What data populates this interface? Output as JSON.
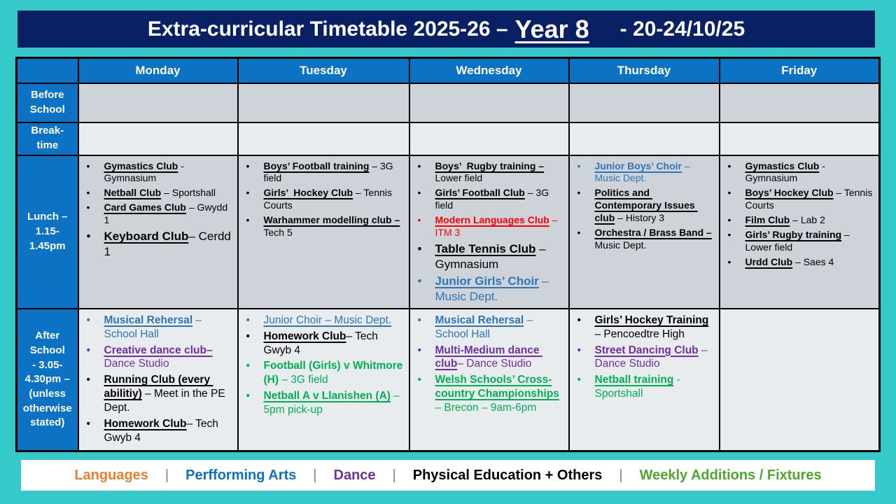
{
  "title": {
    "prefix": "Extra-curricular Timetable 2025-26 –",
    "year": "Year 8",
    "suffix": "- 20-24/10/25"
  },
  "colors": {
    "teal": "#35c9c9",
    "navy": "#0a2064",
    "header_blue": "#0b72c4",
    "row_gray": "#ced3da",
    "row_light": "#e9ecef",
    "sep_gray": "#7f7f7f",
    "text_black": "#000000",
    "text_blue": "#2e75b6",
    "text_purple": "#7030a0",
    "text_green": "#00b050",
    "text_red": "#ff0000",
    "legend_orange": "#ed7d31",
    "legend_green": "#4ea72e"
  },
  "table": {
    "days": [
      "Monday",
      "Tuesday",
      "Wednesday",
      "Thursday",
      "Friday"
    ],
    "rows": [
      {
        "id": "before",
        "label": "Before\nSchool",
        "cells": [
          [],
          [],
          [],
          [],
          []
        ]
      },
      {
        "id": "break",
        "label": "Break-\ntime",
        "cells": [
          [],
          [],
          [],
          [],
          []
        ]
      },
      {
        "id": "lunch",
        "label": "Lunch –\n1.15-\n1.45pm",
        "cells": [
          [
            {
              "head": "Gymastics Club",
              "tail": " - Gymnasium",
              "color": "#000000"
            },
            {
              "head": "Netball Club",
              "tail": " – Sportshall",
              "color": "#000000"
            },
            {
              "head": "Card Games Club",
              "tail": " – Gwydd 1",
              "color": "#000000"
            },
            {
              "head": "Keyboard Club",
              "tail": "– Cerdd 1",
              "color": "#000000",
              "big": true
            }
          ],
          [
            {
              "head": "Boys’ Football training",
              "tail": " – 3G field",
              "color": "#000000"
            },
            {
              "head": "Girls’  Hockey Club",
              "tail": " – Tennis Courts",
              "color": "#000000"
            },
            {
              "head": "Warhammer modelling club –",
              "tail": " Tech 5",
              "color": "#000000"
            }
          ],
          [
            {
              "head": "Boys’  Rugby training –",
              "tail": " Lower field",
              "color": "#000000"
            },
            {
              "head": "Girls’ Football Club",
              "tail": " – 3G field",
              "color": "#000000"
            },
            {
              "head": "Modern Languages Club",
              "tail": " – ITM 3",
              "color": "#ff0000"
            },
            {
              "head": "Table Tennis Club",
              "tail": " – Gymnasium",
              "color": "#000000",
              "big": true
            },
            {
              "head": "Junior Girls’ Choir",
              "tail": " – Music Dept.",
              "color": "#2e75b6",
              "big": true
            }
          ],
          [
            {
              "head": "Junior Boys’ Choir",
              "tail": " – Music Dept.",
              "color": "#2e75b6"
            },
            {
              "head": "Politics and Contemporary Issues club",
              "tail": " – History 3",
              "color": "#000000"
            },
            {
              "head": "Orchestra / Brass Band –",
              "tail": " Music Dept.",
              "color": "#000000"
            }
          ],
          [
            {
              "head": "Gymastics Club",
              "tail": " - Gymnasium",
              "color": "#000000"
            },
            {
              "head": "Boys’ Hockey Club",
              "tail": " – Tennis Courts",
              "color": "#000000"
            },
            {
              "head": "Film Club",
              "tail": " – Lab 2",
              "color": "#000000"
            },
            {
              "head": "Girls’ Rugby training",
              "tail": " – Lower field",
              "color": "#000000"
            },
            {
              "head": "Urdd Club",
              "tail": " – Saes 4",
              "color": "#000000"
            }
          ]
        ]
      },
      {
        "id": "after",
        "label": "After\nSchool\n- 3.05-\n4.30pm –\n(unless\notherwise\nstated)",
        "cells": [
          [
            {
              "head": "Musical Rehersal",
              "tail": " – School Hall",
              "color": "#2e75b6"
            },
            {
              "head": "Creative dance club–",
              "tail": " Dance Studio",
              "color": "#7030a0"
            },
            {
              "head": "Running Club (every abilitiy)",
              "tail": " – Meet in the PE Dept.",
              "color": "#000000"
            },
            {
              "head": "Homework Club",
              "tail": "– Tech Gwyb 4",
              "color": "#000000"
            }
          ],
          [
            {
              "head": "Junior Choir – Music Dept.",
              "tail": "",
              "color": "#2e75b6",
              "bold": false
            },
            {
              "head": "Homework Club",
              "tail": "– Tech Gwyb 4",
              "color": "#000000"
            },
            {
              "head": "Football (Girls) v Whitmore (H)",
              "tail": " – 3G field",
              "color": "#00b050",
              "underline": false
            },
            {
              "head": "Netball A v Llanishen (A)",
              "tail": " – 5pm pick-up",
              "color": "#00b050"
            }
          ],
          [
            {
              "head": "Musical Rehersal",
              "tail": " – School Hall",
              "color": "#2e75b6"
            },
            {
              "head": "Multi-Medium dance club",
              "tail": "– Dance Studio",
              "color": "#7030a0"
            },
            {
              "head": "Welsh Schools’ Cross-country Championships",
              "tail": " – Brecon – 9am-6pm",
              "color": "#00b050"
            }
          ],
          [
            {
              "head": "Girls’ Hockey Training",
              "tail": " – Pencoedtre High",
              "color": "#000000"
            },
            {
              "head": "Street Dancing Club",
              "tail": " – Dance Studio",
              "color": "#7030a0"
            },
            {
              "head": "Netball training",
              "tail": " - Sportshall",
              "color": "#00b050"
            }
          ],
          []
        ]
      }
    ]
  },
  "legend": {
    "separator": "|",
    "items": [
      {
        "label": "Languages",
        "color": "#ed7d31"
      },
      {
        "label": "Perfforming Arts",
        "color": "#0b72c4"
      },
      {
        "label": "Dance",
        "color": "#7030a0"
      },
      {
        "label": "Physical Education + Others",
        "color": "#000000"
      },
      {
        "label": "Weekly Additions / Fixtures",
        "color": "#4ea72e"
      }
    ]
  }
}
